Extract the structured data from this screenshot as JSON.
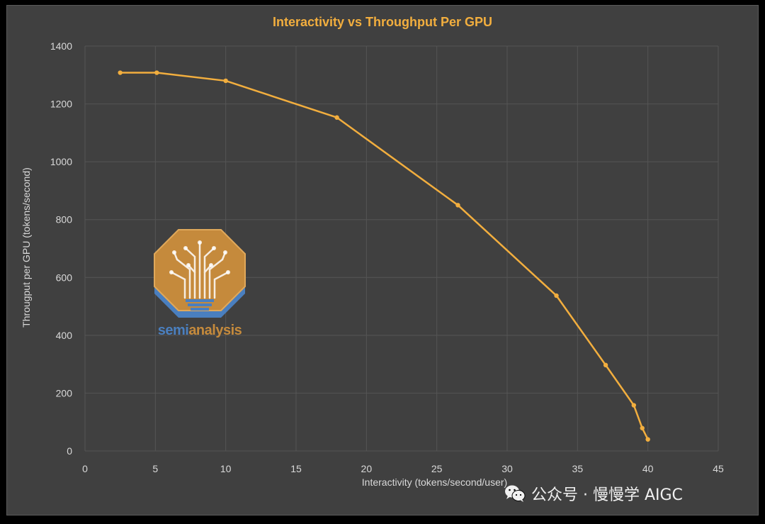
{
  "colors": {
    "background": "#404040",
    "line": "#f2ae3e",
    "title": "#f2ae3e",
    "grid": "#555555",
    "text": "#d9d9d9",
    "logo_orange": "#c58a3c",
    "logo_blue": "#4a7fbf"
  },
  "chart_data": {
    "type": "line",
    "title": "Interactivity vs Throughput Per GPU",
    "xlabel": "Interactivity (tokens/second/user)",
    "ylabel": "Througput per GPU (tokens/second)",
    "xlim": [
      0,
      45
    ],
    "ylim": [
      0,
      1400
    ],
    "x_ticks": [
      0,
      5,
      10,
      15,
      20,
      25,
      30,
      35,
      40,
      45
    ],
    "y_ticks": [
      0,
      200,
      400,
      600,
      800,
      1000,
      1200,
      1400
    ],
    "grid": true,
    "legend": "none",
    "series": [
      {
        "x": [
          2.5,
          5.1,
          10.0,
          17.9,
          26.5,
          33.5,
          37.0,
          39.0,
          39.6,
          40.0
        ],
        "y": [
          1308,
          1308,
          1280,
          1153,
          850,
          537,
          297,
          158,
          79,
          40
        ]
      }
    ]
  },
  "logo": {
    "text_part1": "semi",
    "text_part2": "analysis",
    "icon": "tree-circuit-octagon-icon"
  },
  "watermark": {
    "icon": "wechat-icon",
    "text": "公众号 · 慢慢学 AIGC"
  }
}
